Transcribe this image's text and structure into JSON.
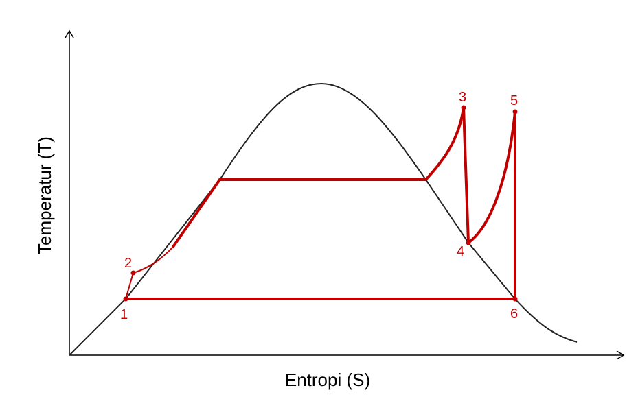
{
  "axes": {
    "x_label": "Entropi (S)",
    "y_label": "Temperatur (T)"
  },
  "points": [
    {
      "id": "1",
      "label": "1"
    },
    {
      "id": "2",
      "label": "2"
    },
    {
      "id": "3",
      "label": "3"
    },
    {
      "id": "4",
      "label": "4"
    },
    {
      "id": "5",
      "label": "5"
    },
    {
      "id": "6",
      "label": "6"
    }
  ],
  "colors": {
    "cycle": "#c00000",
    "dome": "#222222",
    "axes": "#000000"
  }
}
